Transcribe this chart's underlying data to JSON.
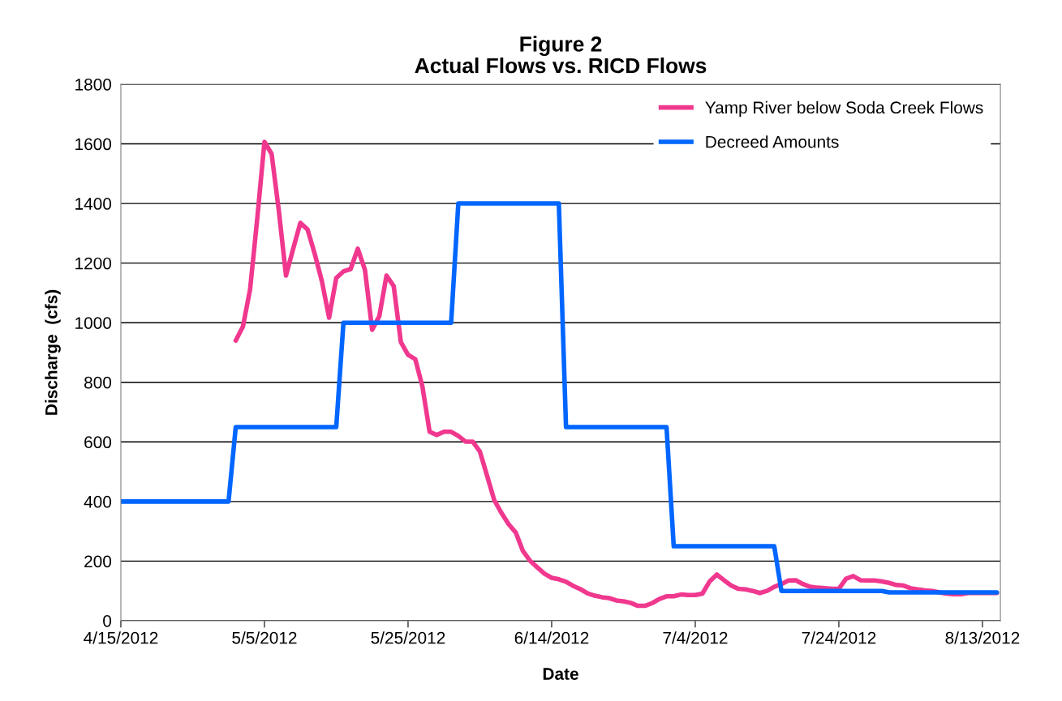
{
  "chart_data": {
    "type": "line",
    "title": "Figure 2\nActual Flows vs. RICD Flows",
    "xlabel": "Date",
    "ylabel": "Discharge  (cfs)",
    "xlim": [
      "2012-04-15",
      "2012-08-15T12:00"
    ],
    "xticks": [
      {
        "value": "2012-04-15",
        "label": "4/15/2012"
      },
      {
        "value": "2012-05-05",
        "label": "5/5/2012"
      },
      {
        "value": "2012-05-25",
        "label": "5/25/2012"
      },
      {
        "value": "2012-06-14",
        "label": "6/14/2012"
      },
      {
        "value": "2012-07-04",
        "label": "7/4/2012"
      },
      {
        "value": "2012-07-24",
        "label": "7/24/2012"
      },
      {
        "value": "2012-08-13",
        "label": "8/13/2012"
      }
    ],
    "ylim": [
      0,
      1800
    ],
    "yticks": [
      0,
      200,
      400,
      600,
      800,
      1000,
      1200,
      1400,
      1600,
      1800
    ],
    "grid": "y",
    "legend": "top right",
    "marker": "none",
    "line_style": "solid",
    "series": [
      {
        "name": "Yamp River below Soda Creek Flows",
        "color": "#f0388f",
        "x": [
          "2012-05-01",
          "2012-05-02",
          "2012-05-03",
          "2012-05-04",
          "2012-05-05",
          "2012-05-06",
          "2012-05-07",
          "2012-05-08",
          "2012-05-09",
          "2012-05-10",
          "2012-05-11",
          "2012-05-12",
          "2012-05-13",
          "2012-05-14",
          "2012-05-15",
          "2012-05-16",
          "2012-05-17",
          "2012-05-18",
          "2012-05-19",
          "2012-05-20",
          "2012-05-21",
          "2012-05-22",
          "2012-05-23",
          "2012-05-24",
          "2012-05-25",
          "2012-05-26",
          "2012-05-27",
          "2012-05-28",
          "2012-05-29",
          "2012-05-30",
          "2012-05-31",
          "2012-06-01",
          "2012-06-02",
          "2012-06-03",
          "2012-06-04",
          "2012-06-05",
          "2012-06-06",
          "2012-06-07",
          "2012-06-08",
          "2012-06-09",
          "2012-06-10",
          "2012-06-11",
          "2012-06-12",
          "2012-06-13",
          "2012-06-14",
          "2012-06-15",
          "2012-06-16",
          "2012-06-17",
          "2012-06-18",
          "2012-06-19",
          "2012-06-20",
          "2012-06-21",
          "2012-06-22",
          "2012-06-23",
          "2012-06-24",
          "2012-06-25",
          "2012-06-26",
          "2012-06-27",
          "2012-06-28",
          "2012-06-29",
          "2012-06-30",
          "2012-07-01",
          "2012-07-02",
          "2012-07-03",
          "2012-07-04",
          "2012-07-05",
          "2012-07-06",
          "2012-07-07",
          "2012-07-08",
          "2012-07-09",
          "2012-07-10",
          "2012-07-11",
          "2012-07-12",
          "2012-07-13",
          "2012-07-14",
          "2012-07-15",
          "2012-07-16",
          "2012-07-17",
          "2012-07-18",
          "2012-07-19",
          "2012-07-20",
          "2012-07-21",
          "2012-07-22",
          "2012-07-23",
          "2012-07-24",
          "2012-07-25",
          "2012-07-26",
          "2012-07-27",
          "2012-07-28",
          "2012-07-29",
          "2012-07-30",
          "2012-07-31",
          "2012-08-01",
          "2012-08-02",
          "2012-08-03",
          "2012-08-04",
          "2012-08-05",
          "2012-08-06",
          "2012-08-07",
          "2012-08-08",
          "2012-08-09",
          "2012-08-10",
          "2012-08-11",
          "2012-08-12",
          "2012-08-13",
          "2012-08-14",
          "2012-08-15"
        ],
        "values": [
          940,
          987,
          1112,
          1350,
          1607,
          1566,
          1376,
          1158,
          1248,
          1335,
          1313,
          1231,
          1139,
          1017,
          1150,
          1172,
          1180,
          1248,
          1177,
          976,
          1022,
          1158,
          1123,
          935,
          892,
          878,
          786,
          634,
          623,
          634,
          634,
          620,
          601,
          601,
          568,
          487,
          405,
          362,
          324,
          296,
          234,
          201,
          179,
          158,
          144,
          139,
          131,
          117,
          106,
          92,
          84,
          79,
          76,
          68,
          65,
          60,
          50,
          50,
          59,
          73,
          82,
          82,
          88,
          86,
          86,
          91,
          132,
          155,
          136,
          118,
          107,
          105,
          100,
          93,
          100,
          114,
          123,
          135,
          136,
          123,
          114,
          111,
          109,
          107,
          107,
          141,
          150,
          136,
          135,
          135,
          132,
          127,
          120,
          118,
          109,
          105,
          102,
          100,
          95,
          91,
          89,
          89,
          93,
          93,
          93,
          93,
          93
        ]
      },
      {
        "name": "Decreed Amounts",
        "color": "#0066ff",
        "x": [
          "2012-04-15",
          "2012-04-30",
          "2012-05-01",
          "2012-05-15",
          "2012-05-16",
          "2012-05-31",
          "2012-06-01",
          "2012-06-15",
          "2012-06-16",
          "2012-06-30",
          "2012-07-01",
          "2012-07-15",
          "2012-07-16",
          "2012-07-30",
          "2012-07-31",
          "2012-08-15"
        ],
        "values": [
          400,
          400,
          650,
          650,
          1000,
          1000,
          1400,
          1400,
          650,
          650,
          250,
          250,
          100,
          100,
          95,
          95
        ]
      }
    ]
  }
}
